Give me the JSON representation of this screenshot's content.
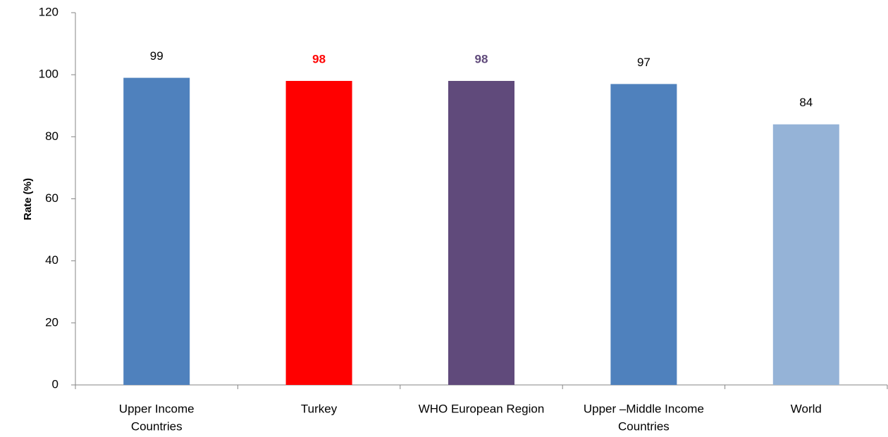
{
  "chart_data": {
    "type": "bar",
    "y_label": "Rate (%)",
    "categories": [
      [
        "Upper Income",
        "Countries"
      ],
      [
        "Turkey"
      ],
      [
        "WHO European Region"
      ],
      [
        "Upper –Middle Income",
        "Countries"
      ],
      [
        "World"
      ]
    ],
    "values": [
      99,
      98,
      98,
      97,
      84
    ],
    "colors": [
      "#4f81bd",
      "#ff0000",
      "#604a7b",
      "#4f81bd",
      "#95b3d7"
    ],
    "highlight": [
      false,
      true,
      true,
      false,
      false
    ],
    "ylim": [
      0,
      120
    ],
    "yticks": [
      0,
      20,
      40,
      60,
      80,
      100,
      120
    ],
    "grid": false
  }
}
